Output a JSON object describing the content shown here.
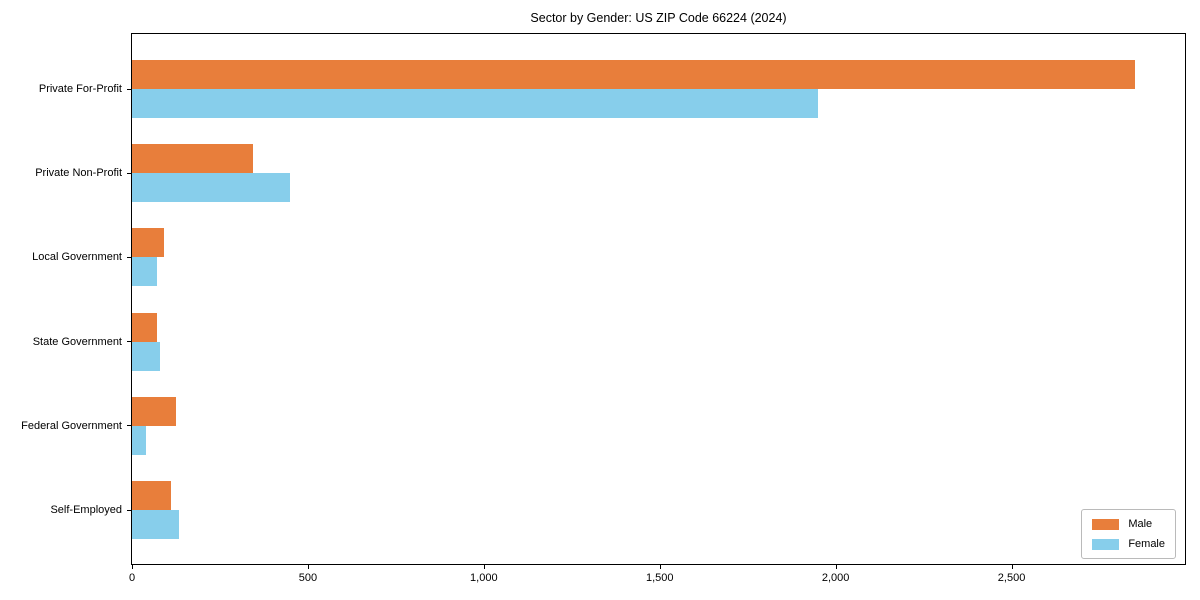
{
  "title": "Sector by Gender: US ZIP Code 66224 (2024)",
  "colors": {
    "male": "#e87e3b",
    "female": "#87ceeb",
    "spine": "#000000",
    "background": "#ffffff",
    "legend_border": "#bababa"
  },
  "legend": {
    "position": "lower right",
    "items": [
      {
        "label": "Male",
        "color": "#e87e3b"
      },
      {
        "label": "Female",
        "color": "#87ceeb"
      }
    ]
  },
  "chart_data": {
    "type": "bar",
    "orientation": "horizontal",
    "title": "Sector by Gender: US ZIP Code 66224 (2024)",
    "categories": [
      "Private For-Profit",
      "Private Non-Profit",
      "Local Government",
      "State Government",
      "Federal Government",
      "Self-Employed"
    ],
    "series": [
      {
        "name": "Male",
        "color": "#e87e3b",
        "values": [
          2850,
          345,
          90,
          70,
          125,
          110
        ]
      },
      {
        "name": "Female",
        "color": "#87ceeb",
        "values": [
          1950,
          450,
          70,
          80,
          40,
          135
        ]
      }
    ],
    "xlabel": "",
    "ylabel": "",
    "xlim": [
      0,
      2993
    ],
    "x_ticks": [
      {
        "value": 0,
        "label": "0"
      },
      {
        "value": 500,
        "label": "500"
      },
      {
        "value": 1000,
        "label": "1,000"
      },
      {
        "value": 1500,
        "label": "1,500"
      },
      {
        "value": 2000,
        "label": "2,000"
      },
      {
        "value": 2500,
        "label": "2,500"
      }
    ],
    "grid": false,
    "legend_position": "lower right"
  }
}
